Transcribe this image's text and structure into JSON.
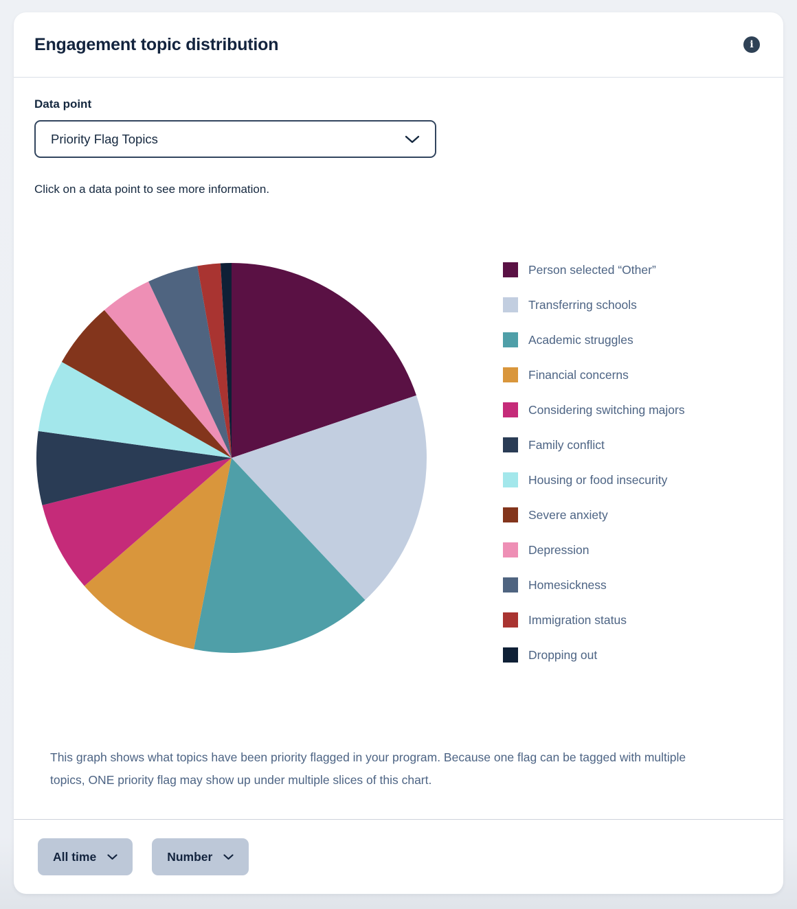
{
  "card": {
    "header": {
      "title": "Engagement topic distribution",
      "info_icon_glyph": "i"
    },
    "data_point": {
      "label": "Data point",
      "selected_value": "Priority Flag Topics"
    },
    "hint": "Click on a data point to see more information.",
    "footer_note": "This graph shows what topics have been priority flagged in your program. Because one flag can be tagged with multiple topics, ONE priority flag may show up under multiple slices of this chart.",
    "filters": {
      "time": "All time",
      "metric": "Number"
    }
  },
  "chart_data": {
    "type": "pie",
    "title": "",
    "legend_position": "right",
    "start_angle": "12 o'clock",
    "direction": "clockwise",
    "values_are": "estimated percent of whole (no numeric labels shown in pixels)",
    "categories": [
      "Person selected “Other”",
      "Transferring schools",
      "Academic struggles",
      "Financial concerns",
      "Considering switching majors",
      "Family conflict",
      "Housing or food insecurity",
      "Severe anxiety",
      "Depression",
      "Homesickness",
      "Immigration status",
      "Dropping out"
    ],
    "values": [
      19.8,
      18.2,
      15.1,
      10.5,
      7.5,
      6.1,
      6.0,
      5.5,
      4.3,
      4.2,
      1.9,
      0.9
    ],
    "colors": [
      "#5a1144",
      "#c2cee0",
      "#4f9fa8",
      "#d9963c",
      "#c52b79",
      "#2a3c55",
      "#a3e7eb",
      "#83351c",
      "#ee8fb5",
      "#4f6480",
      "#a93431",
      "#0f2036"
    ]
  }
}
